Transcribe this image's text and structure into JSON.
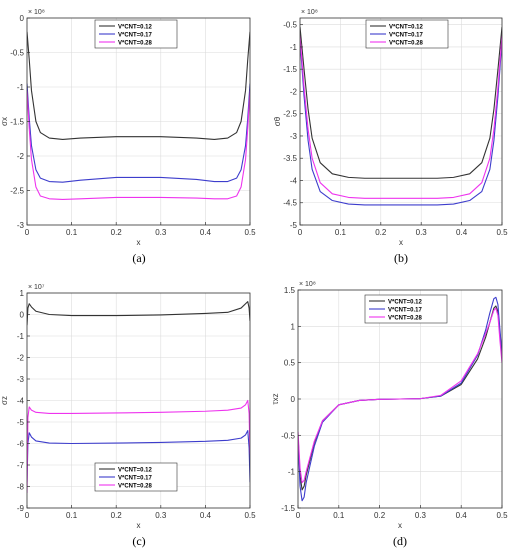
{
  "chart_data": [
    {
      "type": "line",
      "panel_label": "(a)",
      "xlabel": "x",
      "ylabel": "σx",
      "exponent": "× 10⁸",
      "xlim": [
        0,
        0.5
      ],
      "ylim": [
        -3,
        0
      ],
      "xticks": [
        0,
        0.1,
        0.2,
        0.3,
        0.4,
        0.5
      ],
      "xtick_labels": [
        "0",
        "0.1",
        "0.2",
        "0.3",
        "0.4",
        "0.5"
      ],
      "yticks": [
        -3,
        -2.5,
        -2,
        -1.5,
        -1,
        -0.5,
        0
      ],
      "ytick_labels": [
        "-3",
        "-2.5",
        "-2",
        "-1.5",
        "-1",
        "-0.5",
        "0"
      ],
      "grid": true,
      "legend_position": "top-center",
      "series": [
        {
          "name": "V*CNT=0.12",
          "color": "#333333",
          "x": [
            0,
            0.005,
            0.01,
            0.02,
            0.03,
            0.05,
            0.08,
            0.12,
            0.2,
            0.3,
            0.38,
            0.42,
            0.45,
            0.47,
            0.48,
            0.49,
            0.495,
            0.5
          ],
          "y": [
            -0.2,
            -0.6,
            -1.05,
            -1.5,
            -1.66,
            -1.74,
            -1.76,
            -1.74,
            -1.72,
            -1.72,
            -1.74,
            -1.76,
            -1.74,
            -1.66,
            -1.5,
            -1.05,
            -0.6,
            -0.2
          ]
        },
        {
          "name": "V*CNT=0.17",
          "color": "#3d3dcc",
          "x": [
            0,
            0.005,
            0.01,
            0.02,
            0.03,
            0.05,
            0.08,
            0.12,
            0.2,
            0.3,
            0.38,
            0.42,
            0.45,
            0.47,
            0.48,
            0.49,
            0.495,
            0.5
          ],
          "y": [
            -0.95,
            -1.45,
            -1.85,
            -2.2,
            -2.32,
            -2.37,
            -2.38,
            -2.35,
            -2.31,
            -2.31,
            -2.34,
            -2.37,
            -2.37,
            -2.32,
            -2.2,
            -1.85,
            -1.45,
            -0.95
          ]
        },
        {
          "name": "V*CNT=0.28",
          "color": "#ee33ee",
          "x": [
            0,
            0.005,
            0.01,
            0.02,
            0.03,
            0.05,
            0.08,
            0.12,
            0.2,
            0.3,
            0.38,
            0.42,
            0.45,
            0.47,
            0.48,
            0.49,
            0.495,
            0.5
          ],
          "y": [
            -1.05,
            -1.6,
            -2.05,
            -2.45,
            -2.58,
            -2.62,
            -2.63,
            -2.62,
            -2.6,
            -2.6,
            -2.61,
            -2.62,
            -2.62,
            -2.58,
            -2.45,
            -2.05,
            -1.6,
            -1.05
          ]
        }
      ]
    },
    {
      "type": "line",
      "panel_label": "(b)",
      "xlabel": "x",
      "ylabel": "σθ",
      "exponent": "× 10⁸",
      "xlim": [
        0,
        0.5
      ],
      "ylim": [
        -5,
        -0.35
      ],
      "xticks": [
        0,
        0.1,
        0.2,
        0.3,
        0.4,
        0.5
      ],
      "xtick_labels": [
        "0",
        "0.1",
        "0.2",
        "0.3",
        "0.4",
        "0.5"
      ],
      "yticks": [
        -5,
        -4.5,
        -4,
        -3.5,
        -3,
        -2.5,
        -2,
        -1.5,
        -1,
        -0.5
      ],
      "ytick_labels": [
        "-5",
        "-4.5",
        "-4",
        "-3.5",
        "-3",
        "-2.5",
        "-2",
        "-1.5",
        "-1",
        "-0.5"
      ],
      "grid": true,
      "legend_position": "top-center",
      "series": [
        {
          "name": "V*CNT=0.12",
          "color": "#333333",
          "x": [
            0,
            0.01,
            0.02,
            0.03,
            0.05,
            0.08,
            0.12,
            0.16,
            0.2,
            0.3,
            0.34,
            0.38,
            0.42,
            0.45,
            0.47,
            0.48,
            0.49,
            0.5
          ],
          "y": [
            -0.55,
            -1.5,
            -2.4,
            -3.05,
            -3.6,
            -3.85,
            -3.93,
            -3.95,
            -3.95,
            -3.95,
            -3.95,
            -3.93,
            -3.85,
            -3.6,
            -3.05,
            -2.4,
            -1.5,
            -0.55
          ]
        },
        {
          "name": "V*CNT=0.17",
          "color": "#3d3dcc",
          "x": [
            0,
            0.01,
            0.02,
            0.03,
            0.05,
            0.08,
            0.12,
            0.16,
            0.2,
            0.3,
            0.34,
            0.38,
            0.42,
            0.45,
            0.47,
            0.48,
            0.49,
            0.5
          ],
          "y": [
            -0.85,
            -2.1,
            -3.1,
            -3.75,
            -4.25,
            -4.45,
            -4.53,
            -4.55,
            -4.55,
            -4.55,
            -4.55,
            -4.53,
            -4.45,
            -4.25,
            -3.75,
            -3.1,
            -2.1,
            -0.85
          ]
        },
        {
          "name": "V*CNT=0.28",
          "color": "#ee33ee",
          "x": [
            0,
            0.01,
            0.02,
            0.03,
            0.05,
            0.08,
            0.12,
            0.16,
            0.2,
            0.3,
            0.34,
            0.38,
            0.42,
            0.45,
            0.47,
            0.48,
            0.49,
            0.5
          ],
          "y": [
            -0.75,
            -1.9,
            -2.85,
            -3.5,
            -4.05,
            -4.3,
            -4.38,
            -4.4,
            -4.4,
            -4.4,
            -4.4,
            -4.38,
            -4.3,
            -4.05,
            -3.5,
            -2.85,
            -1.9,
            -0.75
          ]
        }
      ]
    },
    {
      "type": "line",
      "panel_label": "(c)",
      "xlabel": "x",
      "ylabel": "σz",
      "exponent": "× 10⁷",
      "xlim": [
        0,
        0.5
      ],
      "ylim": [
        -9,
        1
      ],
      "xticks": [
        0,
        0.1,
        0.2,
        0.3,
        0.4,
        0.5
      ],
      "xtick_labels": [
        "0",
        "0.1",
        "0.2",
        "0.3",
        "0.4",
        "0.5"
      ],
      "yticks": [
        -9,
        -8,
        -7,
        -6,
        -5,
        -4,
        -3,
        -2,
        -1,
        0,
        1
      ],
      "ytick_labels": [
        "-9",
        "-8",
        "-7",
        "-6",
        "-5",
        "-4",
        "-3",
        "-2",
        "-1",
        "0",
        "1"
      ],
      "grid": true,
      "legend_position": "bottom-center",
      "series": [
        {
          "name": "V*CNT=0.12",
          "color": "#333333",
          "x": [
            0,
            0.002,
            0.005,
            0.01,
            0.02,
            0.05,
            0.1,
            0.2,
            0.3,
            0.4,
            0.45,
            0.48,
            0.49,
            0.495,
            0.498,
            0.5
          ],
          "y": [
            -0.5,
            0.3,
            0.5,
            0.35,
            0.15,
            0.0,
            -0.05,
            -0.05,
            -0.02,
            0.05,
            0.1,
            0.3,
            0.5,
            0.6,
            0.3,
            -0.3
          ]
        },
        {
          "name": "V*CNT=0.17",
          "color": "#3d3dcc",
          "x": [
            0,
            0.002,
            0.005,
            0.01,
            0.02,
            0.05,
            0.1,
            0.2,
            0.3,
            0.4,
            0.45,
            0.48,
            0.49,
            0.495,
            0.498,
            0.5
          ],
          "y": [
            -7.8,
            -6.0,
            -5.5,
            -5.7,
            -5.88,
            -5.98,
            -6.0,
            -5.98,
            -5.95,
            -5.9,
            -5.85,
            -5.75,
            -5.6,
            -5.4,
            -6.2,
            -7.8
          ]
        },
        {
          "name": "V*CNT=0.28",
          "color": "#ee33ee",
          "x": [
            0,
            0.002,
            0.005,
            0.01,
            0.02,
            0.05,
            0.1,
            0.2,
            0.3,
            0.4,
            0.45,
            0.48,
            0.49,
            0.495,
            0.498,
            0.5
          ],
          "y": [
            -8.3,
            -4.8,
            -4.3,
            -4.45,
            -4.55,
            -4.6,
            -4.6,
            -4.58,
            -4.55,
            -4.5,
            -4.45,
            -4.35,
            -4.2,
            -4.0,
            -4.6,
            -6.5
          ]
        }
      ]
    },
    {
      "type": "line",
      "panel_label": "(d)",
      "xlabel": "x",
      "ylabel": "τxz",
      "exponent": "× 10⁸",
      "xlim": [
        0,
        0.5
      ],
      "ylim": [
        -1.5,
        1.5
      ],
      "xticks": [
        0,
        0.1,
        0.2,
        0.3,
        0.4,
        0.5
      ],
      "xtick_labels": [
        "0",
        "0.1",
        "0.2",
        "0.3",
        "0.4",
        "0.5"
      ],
      "yticks": [
        -1.5,
        -1,
        -0.5,
        0,
        0.5,
        1,
        1.5
      ],
      "ytick_labels": [
        "-1.5",
        "-1",
        "-0.5",
        "0",
        "0.5",
        "1",
        "1.5"
      ],
      "grid": true,
      "legend_position": "top-left",
      "series": [
        {
          "name": "V*CNT=0.12",
          "color": "#333333",
          "x": [
            0,
            0.005,
            0.01,
            0.015,
            0.02,
            0.04,
            0.06,
            0.1,
            0.15,
            0.2,
            0.25,
            0.3,
            0.35,
            0.4,
            0.44,
            0.46,
            0.47,
            0.48,
            0.485,
            0.49,
            0.495,
            0.5
          ],
          "y": [
            -0.5,
            -1.05,
            -1.25,
            -1.2,
            -1.05,
            -0.6,
            -0.3,
            -0.08,
            -0.02,
            -0.005,
            0.0,
            0.005,
            0.04,
            0.2,
            0.55,
            0.85,
            1.05,
            1.25,
            1.28,
            1.2,
            0.9,
            0.6
          ]
        },
        {
          "name": "V*CNT=0.17",
          "color": "#3d3dcc",
          "x": [
            0,
            0.005,
            0.01,
            0.015,
            0.02,
            0.04,
            0.06,
            0.1,
            0.15,
            0.2,
            0.25,
            0.3,
            0.35,
            0.4,
            0.44,
            0.46,
            0.47,
            0.48,
            0.485,
            0.49,
            0.495,
            0.5
          ],
          "y": [
            -0.55,
            -1.2,
            -1.4,
            -1.35,
            -1.15,
            -0.65,
            -0.32,
            -0.08,
            -0.02,
            -0.005,
            0.0,
            0.005,
            0.04,
            0.22,
            0.6,
            0.95,
            1.18,
            1.38,
            1.4,
            1.3,
            0.95,
            0.6
          ]
        },
        {
          "name": "V*CNT=0.28",
          "color": "#ee33ee",
          "x": [
            0,
            0.005,
            0.01,
            0.015,
            0.02,
            0.04,
            0.06,
            0.1,
            0.15,
            0.2,
            0.25,
            0.3,
            0.35,
            0.4,
            0.44,
            0.46,
            0.47,
            0.48,
            0.485,
            0.49,
            0.495,
            0.5
          ],
          "y": [
            -0.45,
            -0.95,
            -1.15,
            -1.12,
            -1.0,
            -0.58,
            -0.3,
            -0.08,
            -0.02,
            -0.005,
            0.0,
            0.005,
            0.05,
            0.25,
            0.62,
            0.9,
            1.05,
            1.22,
            1.25,
            1.15,
            0.8,
            0.5
          ]
        }
      ]
    }
  ]
}
